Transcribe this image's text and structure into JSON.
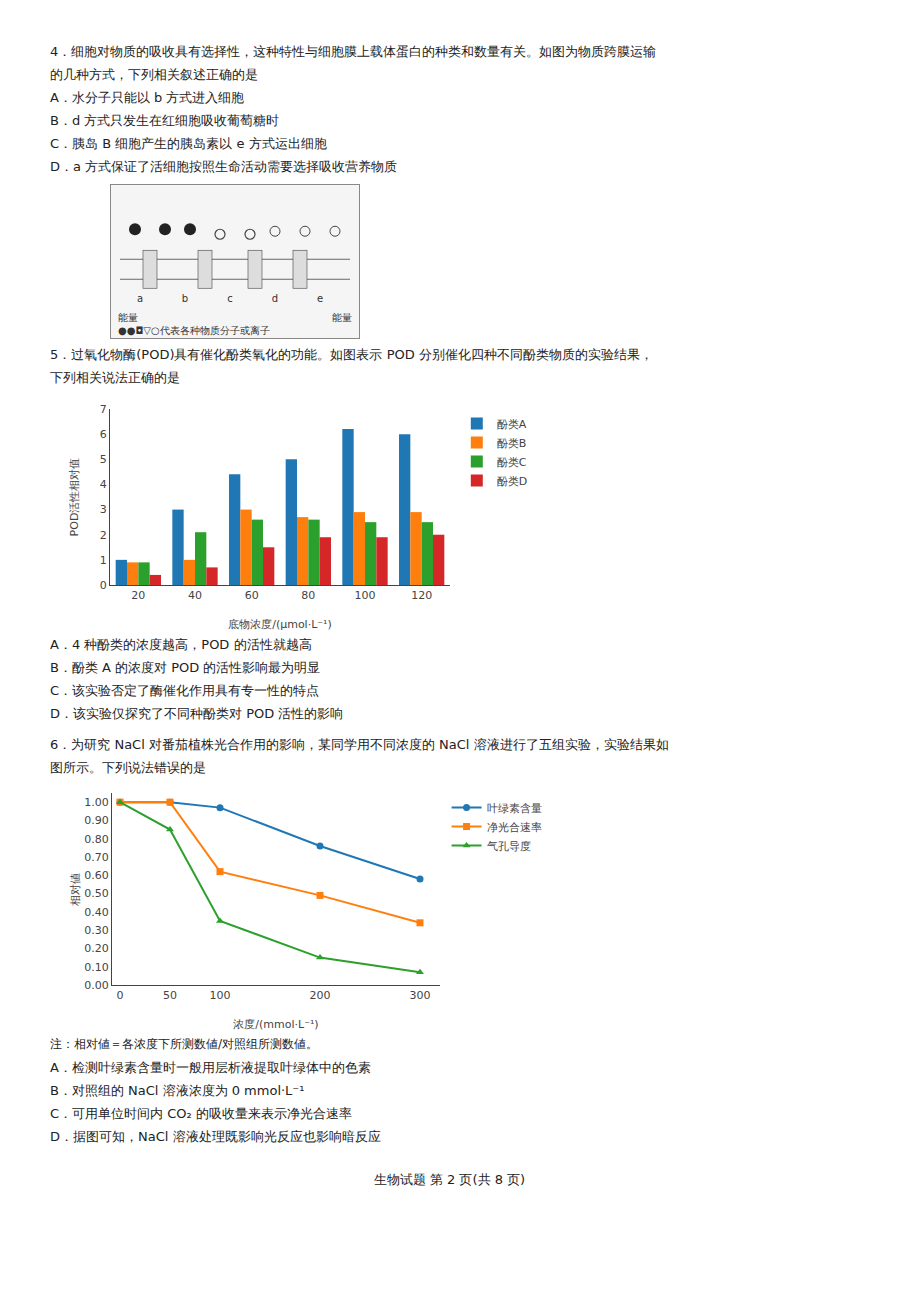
{
  "chart_data": [
    {
      "type": "bar",
      "annotations": [
        "4．细胞对物质的吸收具有选择性，这种特性与细胞膜上载体蛋白的种类和数量有关。如图为物质跨膜运输",
        "   的几种方式，下列相关叙述正确的是",
        "   A．水分子只能以 b 方式进入细胞",
        "   B．d 方式只发生在红细胞吸收葡萄糖时",
        "   C．胰岛 B 细胞产生的胰岛素以 e 方式运出细胞",
        "   D．a 方式保证了活细胞按照生命活动需要选择吸收营养物质",
        "a",
        "b",
        "c",
        "d",
        "e",
        "能量",
        "能量",
        "●●◘▽○代表各种物质分子或离子",
        "5．过氧化物酶(POD)具有催化酚类氧化的功能。如图表示 POD 分别催化四种不同酚类物质的实验结果，",
        "   下列相关说法正确的是",
        "A．4 种酚类的浓度越高，POD 的活性就越高",
        "B．酚类 A 的浓度对 POD 的活性影响最为明显",
        "C．该实验否定了酶催化作用具有专一性的特点",
        "D．该实验仅探究了不同种酚类对 POD 活性的影响"
      ],
      "categories": [
        20,
        40,
        60,
        80,
        100,
        120
      ],
      "series": [
        {
          "name": "酚类A",
          "values": [
            1.0,
            3.0,
            4.4,
            5.0,
            6.2,
            6.0
          ]
        },
        {
          "name": "酚类B",
          "values": [
            0.9,
            1.0,
            3.0,
            2.7,
            2.9,
            2.9
          ]
        },
        {
          "name": "酚类C",
          "values": [
            0.9,
            2.1,
            2.6,
            2.6,
            2.5,
            2.5
          ]
        },
        {
          "name": "酚类D",
          "values": [
            0.4,
            0.7,
            1.5,
            1.9,
            1.9,
            2.0
          ]
        }
      ],
      "xlabel": "底物浓度/(μmol·L⁻¹)",
      "ylabel": "POD活性相对值",
      "ylim": [
        0,
        7
      ],
      "yticks": [
        0,
        1,
        2,
        3,
        4,
        5,
        6,
        7
      ],
      "grid": false,
      "legend": "right"
    },
    {
      "type": "line",
      "annotations": [
        "6．为研究 NaCl 对番茄植株光合作用的影响，某同学用不同浓度的 NaCl 溶液进行了五组实验，实验结果如",
        "   图所示。下列说法错误的是",
        "注：相对値＝各浓度下所测数値/对照组所测数値。",
        "A．检测叶绿素含量时一般用层析液提取叶绿体中的色素",
        "B．对照组的 NaCl 溶液浓度为 0 mmol·L⁻¹",
        "C．可用单位时间内 CO₂ 的吸收量来表示净光合速率",
        "D．据图可知，NaCl 溶液处理既影响光反应也影响暗反应",
        "生物试题  第 2 页(共 8 页)"
      ],
      "x": [
        0,
        50,
        100,
        200,
        300
      ],
      "series": [
        {
          "name": "叶绿素含量",
          "values": [
            1.0,
            1.0,
            0.97,
            0.76,
            0.58
          ],
          "marker": "circle"
        },
        {
          "name": "净光合速率",
          "values": [
            1.0,
            1.0,
            0.62,
            0.49,
            0.34
          ],
          "marker": "square"
        },
        {
          "name": "气孔导度",
          "values": [
            1.0,
            0.85,
            0.35,
            0.15,
            0.07
          ],
          "marker": "triangle-up"
        }
      ],
      "xlabel": "浓度/(mmol·L⁻¹)",
      "ylabel": "相对値",
      "xlim": [
        -8,
        320
      ],
      "xticks": [
        0,
        50,
        100,
        200,
        300
      ],
      "ylim": [
        0.0,
        1.05
      ],
      "yticks": [
        {
          "value": 0,
          "label": "0.00"
        },
        {
          "value": 0.1,
          "label": "0.10"
        },
        {
          "value": 0.2,
          "label": "0.20"
        },
        {
          "value": 0.3,
          "label": "0.30"
        },
        {
          "value": 0.4,
          "label": "0.40"
        },
        {
          "value": 0.5,
          "label": "0.50"
        },
        {
          "value": 0.6,
          "label": "0.60"
        },
        {
          "value": 0.7,
          "label": "0.70"
        },
        {
          "value": 0.8,
          "label": "0.80"
        },
        {
          "value": 0.9,
          "label": "0.90"
        },
        {
          "value": 1,
          "label": "1.00"
        }
      ],
      "grid": false,
      "legend": "right"
    }
  ]
}
